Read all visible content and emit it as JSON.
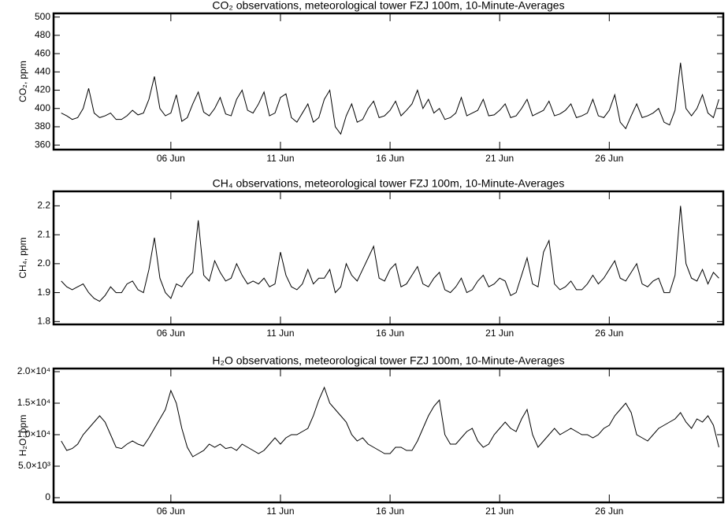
{
  "chart_data": [
    {
      "type": "line",
      "title": "CO₂ observations, meteorological tower FZJ 100m, 10-Minute-Averages",
      "y_label": "CO₂, ppm",
      "xlim": [
        0.65,
        31.2
      ],
      "xticks": [
        {
          "value": 6,
          "label": "06 Jun"
        },
        {
          "value": 11,
          "label": "11 Jun"
        },
        {
          "value": 16,
          "label": "16 Jun"
        },
        {
          "value": 21,
          "label": "21 Jun"
        },
        {
          "value": 26,
          "label": "26 Jun"
        }
      ],
      "ylim": [
        355,
        504
      ],
      "yticks": [
        360,
        380,
        400,
        420,
        440,
        460,
        480,
        500
      ],
      "x": [
        1,
        1.25,
        1.5,
        1.75,
        2,
        2.25,
        2.5,
        2.75,
        3,
        3.25,
        3.5,
        3.75,
        4,
        4.25,
        4.5,
        4.75,
        5,
        5.25,
        5.5,
        5.75,
        6,
        6.25,
        6.5,
        6.75,
        7,
        7.25,
        7.5,
        7.75,
        8,
        8.25,
        8.5,
        8.75,
        9,
        9.25,
        9.5,
        9.75,
        10,
        10.25,
        10.5,
        10.75,
        11,
        11.25,
        11.5,
        11.75,
        12,
        12.25,
        12.5,
        12.75,
        13,
        13.25,
        13.5,
        13.75,
        14,
        14.25,
        14.5,
        14.75,
        15,
        15.25,
        15.5,
        15.75,
        16,
        16.25,
        16.5,
        16.75,
        17,
        17.25,
        17.5,
        17.75,
        18,
        18.25,
        18.5,
        18.75,
        19,
        19.25,
        19.5,
        19.75,
        20,
        20.25,
        20.5,
        20.75,
        21,
        21.25,
        21.5,
        21.75,
        22,
        22.25,
        22.5,
        22.75,
        23,
        23.25,
        23.5,
        23.75,
        24,
        24.25,
        24.5,
        24.75,
        25,
        25.25,
        25.5,
        25.75,
        26,
        26.25,
        26.5,
        26.75,
        27,
        27.25,
        27.5,
        27.75,
        28,
        28.25,
        28.5,
        28.75,
        29,
        29.25,
        29.5,
        29.75,
        30,
        30.25,
        30.5,
        30.75,
        31
      ],
      "series": [
        {
          "name": "CO2",
          "color": "#000000",
          "values": [
            395,
            392,
            388,
            390,
            400,
            422,
            395,
            390,
            392,
            395,
            388,
            388,
            392,
            398,
            393,
            395,
            410,
            435,
            400,
            392,
            395,
            415,
            386,
            390,
            405,
            418,
            396,
            392,
            400,
            412,
            394,
            392,
            410,
            420,
            398,
            395,
            405,
            418,
            392,
            395,
            412,
            416,
            390,
            385,
            395,
            405,
            385,
            390,
            410,
            420,
            380,
            372,
            392,
            405,
            385,
            388,
            400,
            408,
            390,
            392,
            398,
            408,
            392,
            398,
            405,
            420,
            400,
            410,
            395,
            400,
            388,
            390,
            395,
            412,
            392,
            395,
            398,
            410,
            392,
            393,
            398,
            405,
            390,
            392,
            400,
            410,
            392,
            395,
            398,
            408,
            392,
            394,
            398,
            405,
            390,
            392,
            395,
            410,
            392,
            390,
            398,
            415,
            385,
            378,
            392,
            405,
            390,
            392,
            395,
            400,
            385,
            382,
            398,
            450,
            400,
            392,
            400,
            415,
            395,
            390,
            410
          ]
        }
      ]
    },
    {
      "type": "line",
      "title": "CH₄ observations, meteorological tower FZJ 100m, 10-Minute-Averages",
      "y_label": "CH₄, ppm",
      "xlim": [
        0.65,
        31.2
      ],
      "xticks": [
        {
          "value": 6,
          "label": "06 Jun"
        },
        {
          "value": 11,
          "label": "11 Jun"
        },
        {
          "value": 16,
          "label": "16 Jun"
        },
        {
          "value": 21,
          "label": "21 Jun"
        },
        {
          "value": 26,
          "label": "26 Jun"
        }
      ],
      "ylim": [
        1.79,
        2.25
      ],
      "yticks": [
        1.8,
        1.9,
        {
          "value": 2,
          "label": "2.0"
        },
        2.1,
        2.2
      ],
      "x": [
        1,
        1.25,
        1.5,
        1.75,
        2,
        2.25,
        2.5,
        2.75,
        3,
        3.25,
        3.5,
        3.75,
        4,
        4.25,
        4.5,
        4.75,
        5,
        5.25,
        5.5,
        5.75,
        6,
        6.25,
        6.5,
        6.75,
        7,
        7.25,
        7.5,
        7.75,
        8,
        8.25,
        8.5,
        8.75,
        9,
        9.25,
        9.5,
        9.75,
        10,
        10.25,
        10.5,
        10.75,
        11,
        11.25,
        11.5,
        11.75,
        12,
        12.25,
        12.5,
        12.75,
        13,
        13.25,
        13.5,
        13.75,
        14,
        14.25,
        14.5,
        14.75,
        15,
        15.25,
        15.5,
        15.75,
        16,
        16.25,
        16.5,
        16.75,
        17,
        17.25,
        17.5,
        17.75,
        18,
        18.25,
        18.5,
        18.75,
        19,
        19.25,
        19.5,
        19.75,
        20,
        20.25,
        20.5,
        20.75,
        21,
        21.25,
        21.5,
        21.75,
        22,
        22.25,
        22.5,
        22.75,
        23,
        23.25,
        23.5,
        23.75,
        24,
        24.25,
        24.5,
        24.75,
        25,
        25.25,
        25.5,
        25.75,
        26,
        26.25,
        26.5,
        26.75,
        27,
        27.25,
        27.5,
        27.75,
        28,
        28.25,
        28.5,
        28.75,
        29,
        29.25,
        29.5,
        29.75,
        30,
        30.25,
        30.5,
        30.75,
        31
      ],
      "series": [
        {
          "name": "CH4",
          "color": "#000000",
          "values": [
            1.94,
            1.92,
            1.91,
            1.92,
            1.93,
            1.9,
            1.88,
            1.87,
            1.89,
            1.92,
            1.9,
            1.9,
            1.93,
            1.94,
            1.91,
            1.9,
            1.98,
            2.09,
            1.95,
            1.9,
            1.88,
            1.93,
            1.92,
            1.95,
            1.97,
            2.15,
            1.96,
            1.94,
            2.01,
            1.97,
            1.94,
            1.95,
            2.0,
            1.96,
            1.93,
            1.94,
            1.93,
            1.95,
            1.92,
            1.93,
            2.04,
            1.96,
            1.92,
            1.91,
            1.93,
            1.98,
            1.93,
            1.95,
            1.95,
            1.98,
            1.9,
            1.92,
            2.0,
            1.96,
            1.94,
            1.98,
            2.02,
            2.06,
            1.95,
            1.94,
            1.98,
            2.0,
            1.92,
            1.93,
            1.96,
            1.99,
            1.93,
            1.92,
            1.95,
            1.97,
            1.91,
            1.9,
            1.92,
            1.95,
            1.9,
            1.91,
            1.94,
            1.96,
            1.92,
            1.93,
            1.95,
            1.94,
            1.89,
            1.9,
            1.96,
            2.02,
            1.93,
            1.92,
            2.04,
            2.08,
            1.93,
            1.91,
            1.92,
            1.94,
            1.91,
            1.91,
            1.93,
            1.96,
            1.93,
            1.95,
            1.98,
            2.01,
            1.95,
            1.94,
            1.97,
            2.0,
            1.93,
            1.92,
            1.94,
            1.95,
            1.9,
            1.9,
            1.96,
            2.2,
            2.0,
            1.95,
            1.94,
            1.98,
            1.93,
            1.97,
            1.95
          ]
        }
      ]
    },
    {
      "type": "line",
      "title": "H₂O observations, meteorological tower FZJ 100m, 10-Minute-Averages",
      "y_label": "H₂O, ppm",
      "xlim": [
        0.65,
        31.2
      ],
      "xticks": [
        {
          "value": 6,
          "label": "06 Jun"
        },
        {
          "value": 11,
          "label": "11 Jun"
        },
        {
          "value": 16,
          "label": "16 Jun"
        },
        {
          "value": 21,
          "label": "21 Jun"
        },
        {
          "value": 26,
          "label": "26 Jun"
        }
      ],
      "ylim": [
        -750,
        20500
      ],
      "yticks": [
        0,
        {
          "value": 5000,
          "label": "5.0×10³"
        },
        {
          "value": 10000,
          "label": "1.0×10⁴"
        },
        {
          "value": 15000,
          "label": "1.5×10⁴"
        },
        {
          "value": 20000,
          "label": "2.0×10⁴"
        }
      ],
      "x": [
        1,
        1.25,
        1.5,
        1.75,
        2,
        2.25,
        2.5,
        2.75,
        3,
        3.25,
        3.5,
        3.75,
        4,
        4.25,
        4.5,
        4.75,
        5,
        5.25,
        5.5,
        5.75,
        6,
        6.25,
        6.5,
        6.75,
        7,
        7.25,
        7.5,
        7.75,
        8,
        8.25,
        8.5,
        8.75,
        9,
        9.25,
        9.5,
        9.75,
        10,
        10.25,
        10.5,
        10.75,
        11,
        11.25,
        11.5,
        11.75,
        12,
        12.25,
        12.5,
        12.75,
        13,
        13.25,
        13.5,
        13.75,
        14,
        14.25,
        14.5,
        14.75,
        15,
        15.25,
        15.5,
        15.75,
        16,
        16.25,
        16.5,
        16.75,
        17,
        17.25,
        17.5,
        17.75,
        18,
        18.25,
        18.5,
        18.75,
        19,
        19.25,
        19.5,
        19.75,
        20,
        20.25,
        20.5,
        20.75,
        21,
        21.25,
        21.5,
        21.75,
        22,
        22.25,
        22.5,
        22.75,
        23,
        23.25,
        23.5,
        23.75,
        24,
        24.25,
        24.5,
        24.75,
        25,
        25.25,
        25.5,
        25.75,
        26,
        26.25,
        26.5,
        26.75,
        27,
        27.25,
        27.5,
        27.75,
        28,
        28.25,
        28.5,
        28.75,
        29,
        29.25,
        29.5,
        29.75,
        30,
        30.25,
        30.5,
        30.75,
        31
      ],
      "series": [
        {
          "name": "H2O",
          "color": "#000000",
          "values": [
            9000,
            7500,
            7800,
            8500,
            10000,
            11000,
            12000,
            13000,
            12000,
            10000,
            8000,
            7800,
            8500,
            9000,
            8500,
            8200,
            9500,
            11000,
            12500,
            14000,
            17000,
            15000,
            11000,
            8000,
            6500,
            7000,
            7500,
            8500,
            8000,
            8500,
            7800,
            8000,
            7500,
            8500,
            8000,
            7500,
            7000,
            7500,
            8500,
            9500,
            8500,
            9500,
            10000,
            10000,
            10500,
            11000,
            13000,
            15500,
            17500,
            15000,
            14000,
            13000,
            12000,
            10000,
            9000,
            9500,
            8500,
            8000,
            7500,
            7000,
            7000,
            8000,
            8000,
            7500,
            7500,
            9000,
            11000,
            13000,
            14500,
            15500,
            10000,
            8500,
            8500,
            9500,
            10500,
            11000,
            9000,
            8000,
            8500,
            10000,
            11000,
            12000,
            11000,
            10500,
            12500,
            14000,
            10000,
            8000,
            9000,
            10000,
            11000,
            10000,
            10500,
            11000,
            10500,
            10000,
            10000,
            9500,
            10000,
            11000,
            11500,
            13000,
            14000,
            15000,
            13500,
            10000,
            9500,
            9000,
            10000,
            11000,
            11500,
            12000,
            12500,
            13500,
            12000,
            11000,
            12500,
            12000,
            13000,
            11500,
            8000
          ]
        }
      ]
    }
  ]
}
